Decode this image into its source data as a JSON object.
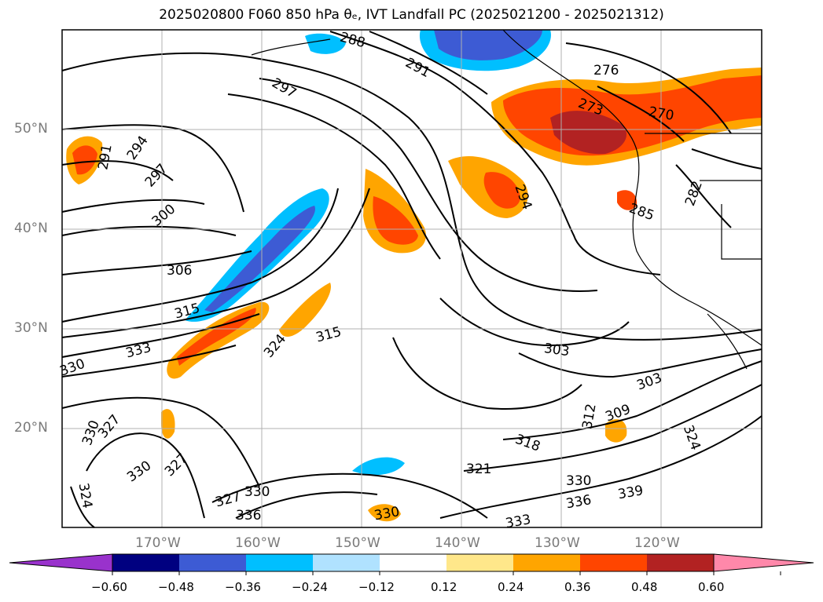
{
  "title": "2025020800 F060 850 hPa θₑ, IVT Landfall PC (2025021200 - 2025021312)",
  "lat_labels": [
    "50°N",
    "40°N",
    "30°N",
    "20°N"
  ],
  "lon_labels": [
    "170°W",
    "160°W",
    "150°W",
    "140°W",
    "130°W",
    "120°W"
  ],
  "colorbar": {
    "ticks": [
      "−0.60",
      "−0.48",
      "−0.36",
      "−0.24",
      "−0.12",
      "0.12",
      "0.24",
      "0.36",
      "0.48",
      "0.60"
    ],
    "colors": [
      "#9932cc",
      "#000080",
      "#3d5bd4",
      "#00bfff",
      "#b0e2ff",
      "#ffffff",
      "#ffe78a",
      "#ffa500",
      "#ff4500",
      "#b22222",
      "#ff88aa"
    ]
  },
  "contour_labels": [
    "288",
    "291",
    "297",
    "294",
    "297",
    "300",
    "306",
    "315",
    "324",
    "333",
    "330",
    "315",
    "303",
    "303",
    "309",
    "312",
    "318",
    "321",
    "330",
    "336",
    "339",
    "333",
    "330",
    "327",
    "330",
    "336",
    "327",
    "330",
    "327",
    "330",
    "324",
    "276",
    "273",
    "270",
    "294",
    "282",
    "285",
    "291",
    "324"
  ],
  "colors": {
    "contour": "#000000",
    "grid": "#b0b0b0",
    "frame": "#000000"
  }
}
